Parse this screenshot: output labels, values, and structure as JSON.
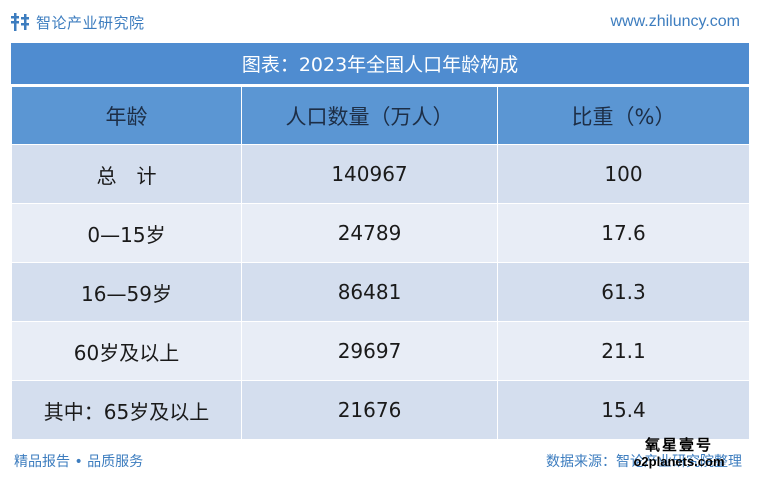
{
  "brand": {
    "name": "智论产业研究院",
    "url": "www.zhiluncy.com"
  },
  "table": {
    "title": "图表：2023年全国人口年龄构成",
    "headers": [
      "年龄",
      "人口数量（万人）",
      "比重（%）"
    ],
    "rows": [
      [
        "总　计",
        "140967",
        "100"
      ],
      [
        "0—15岁",
        "24789",
        "17.6"
      ],
      [
        "16—59岁",
        "86481",
        "61.3"
      ],
      [
        "60岁及以上",
        "29697",
        "21.1"
      ],
      [
        "其中：65岁及以上",
        "21676",
        "15.4"
      ]
    ]
  },
  "footer": {
    "left": "精品报告 • 品质服务",
    "right": "数据来源：智论产业研究院整理"
  },
  "watermark": {
    "top": "氧星壹号",
    "bottom": "o2planets.com"
  },
  "colors": {
    "accent": "#4f8cd0",
    "header_cell": "#5b96d3",
    "row_dark": "#d4deee",
    "row_light": "#e8edf6",
    "brand_text": "#3d7dbf"
  }
}
